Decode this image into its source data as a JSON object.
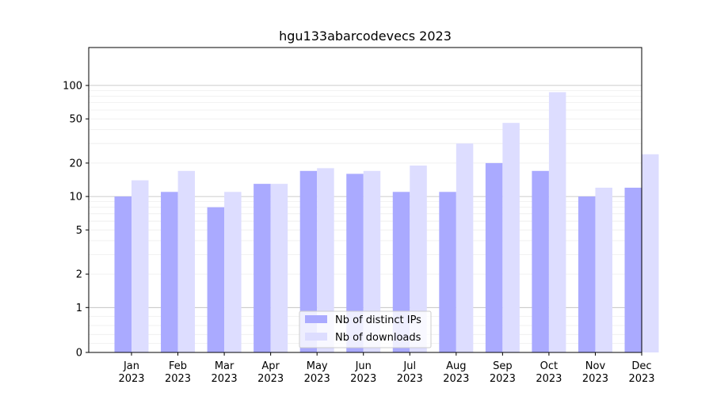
{
  "chart_data": {
    "type": "bar",
    "title": "hgu133abarcodevecs 2023",
    "xlabel": "",
    "ylabel": "",
    "yscale": "symlog",
    "ylim": [
      0,
      100
    ],
    "yticks": [
      0,
      1,
      2,
      5,
      10,
      20,
      50,
      100
    ],
    "categories": [
      "Jan\n2023",
      "Feb\n2023",
      "Mar\n2023",
      "Apr\n2023",
      "May\n2023",
      "Jun\n2023",
      "Jul\n2023",
      "Aug\n2023",
      "Sep\n2023",
      "Oct\n2023",
      "Nov\n2023",
      "Dec\n2023"
    ],
    "series": [
      {
        "name": "Nb of distinct IPs",
        "color": "#aaaaff",
        "values": [
          10,
          11,
          8,
          13,
          17,
          16,
          11,
          11,
          20,
          17,
          10,
          12
        ]
      },
      {
        "name": "Nb of downloads",
        "color": "#ddddff",
        "values": [
          14,
          17,
          11,
          13,
          18,
          17,
          19,
          30,
          46,
          87,
          12,
          24
        ]
      }
    ],
    "legend_position": "bottom-center",
    "grid": true
  }
}
